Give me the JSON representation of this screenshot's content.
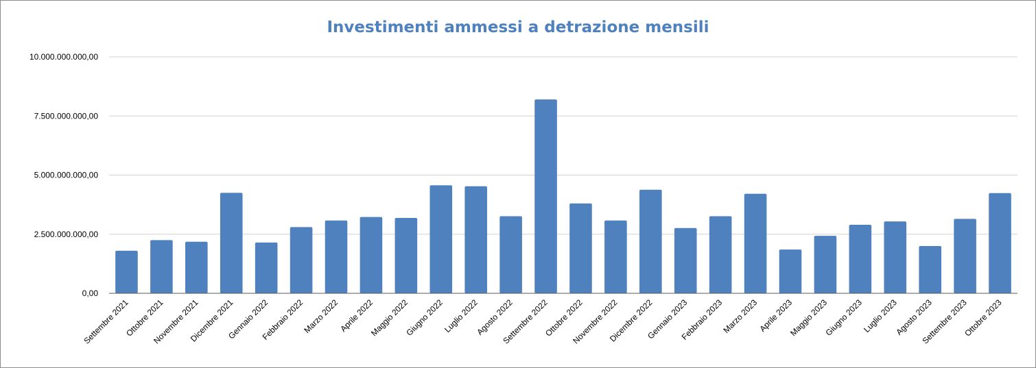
{
  "chart_data": {
    "type": "bar",
    "title": "Investimenti ammessi a detrazione mensili",
    "xlabel": "",
    "ylabel": "",
    "ylim": [
      0,
      10000000000
    ],
    "yticks": [
      0,
      2500000000,
      5000000000,
      7500000000,
      10000000000
    ],
    "ytick_labels": [
      "0,00",
      "2.500.000.000,00",
      "5.000.000.000,00",
      "7.500.000.000,00",
      "10.000.000.000,00"
    ],
    "grid": true,
    "legend": "none",
    "color": "#4e81bd",
    "categories": [
      "Settembre 2021",
      "Ottobre 2021",
      "Novembre 2021",
      "Dicembre 2021",
      "Gennaio 2022",
      "Febbraio 2022",
      "Marzo 2022",
      "Aprile 2022",
      "Maggio 2022",
      "Giugno 2022",
      "Luglio 2022",
      "Agosto 2022",
      "Settembre 2022",
      "Ottobre 2022",
      "Novembre 2022",
      "Dicembre 2022",
      "Gennaio 2023",
      "Febbraio 2023",
      "Marzo 2023",
      "Aprile 2023",
      "Maggio 2023",
      "Giugno 2023",
      "Luglio 2023",
      "Agosto 2023",
      "Settembre 2023",
      "Ottobre 2023"
    ],
    "values": [
      1800000000,
      2250000000,
      2180000000,
      4250000000,
      2150000000,
      2800000000,
      3080000000,
      3230000000,
      3190000000,
      4570000000,
      4530000000,
      3260000000,
      8200000000,
      3800000000,
      3080000000,
      4380000000,
      2760000000,
      3260000000,
      4210000000,
      1850000000,
      2430000000,
      2900000000,
      3040000000,
      2000000000,
      3150000000,
      4240000000
    ]
  }
}
